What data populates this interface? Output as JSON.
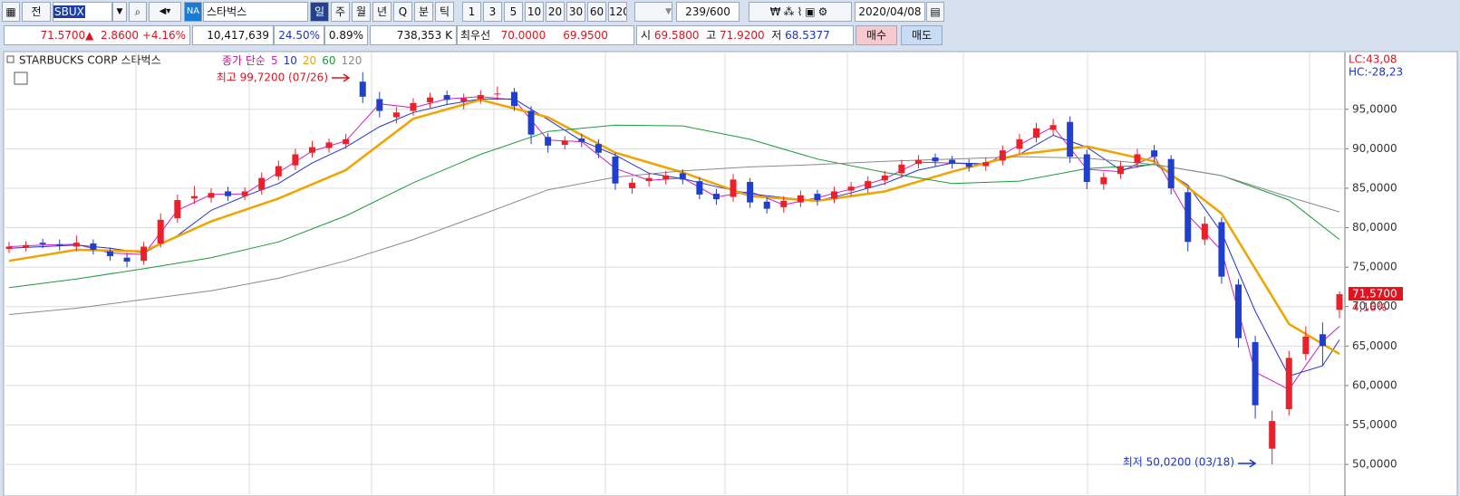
{
  "toolbar": {
    "tab": "전",
    "code": "SBUX",
    "market": "NA",
    "name": "스타벅스",
    "periods": [
      "일",
      "주",
      "월",
      "년",
      "Q",
      "분",
      "틱"
    ],
    "intervals": [
      "1",
      "3",
      "5",
      "10",
      "20",
      "30",
      "60",
      "120"
    ],
    "count": "239",
    "max": "/600",
    "date": "2020/04/08"
  },
  "quote": {
    "price": "71.5700▲",
    "change": "2.8600",
    "rate": "+4.16%",
    "volume": "10,417,639",
    "ratio1": "24.50%",
    "ratio2": "0.89%",
    "amount": "738,353 K",
    "best_label": "최우선",
    "ask": "70.0000",
    "bid": "69.9500",
    "open_label": "시",
    "open": "69.5800",
    "high_label": "고",
    "high": "71.9200",
    "low_label": "저",
    "low": "68.5377",
    "buy": "매수",
    "sell": "매도"
  },
  "chart_data": {
    "type": "candlestick",
    "title": "STARBUCKS CORP 스타벅스",
    "ma_label": "종가 단순",
    "lc": "LC:43,08",
    "hc": "HC:-28,23",
    "high_annotation": "최고 99,7200 (07/26)",
    "low_annotation": "최저 50,0200 (03/18)",
    "last_label": "71,5700",
    "last_change": "4,16%",
    "up_color": "#e8212b",
    "down_color": "#1f3fcc",
    "ylim": [
      46,
      102.2
    ],
    "yticks": [
      {
        "value": 50,
        "label": "50,0000"
      },
      {
        "value": 55,
        "label": "55,0000"
      },
      {
        "value": 60,
        "label": "60,0000"
      },
      {
        "value": 65,
        "label": "65,0000"
      },
      {
        "value": 70,
        "label": "70,0000"
      },
      {
        "value": 75,
        "label": "75,0000"
      },
      {
        "value": 80,
        "label": "80,0000"
      },
      {
        "value": 85,
        "label": "85,0000"
      },
      {
        "value": 90,
        "label": "90,0000"
      },
      {
        "value": 95,
        "label": "95,0000"
      }
    ],
    "grid": true,
    "open": [
      77.3,
      77.5,
      78.1,
      77.9,
      77.6,
      78.0,
      77.0,
      76.2,
      75.8,
      78.0,
      81.2,
      83.7,
      83.8,
      84.6,
      84.0,
      84.8,
      86.5,
      87.9,
      89.5,
      90.1,
      90.6,
      98.5,
      96.3,
      94.0,
      94.8,
      95.9,
      96.8,
      96.0,
      96.3,
      96.9,
      97.2,
      94.8,
      91.5,
      90.5,
      91.3,
      90.6,
      89.0,
      85.0,
      85.9,
      86.1,
      86.9,
      85.9,
      84.3,
      83.9,
      85.8,
      83.3,
      82.6,
      83.2,
      84.3,
      83.7,
      84.7,
      85.0,
      86.0,
      86.9,
      88.1,
      88.9,
      88.6,
      88.2,
      87.8,
      88.5,
      90.0,
      91.4,
      92.4,
      93.4,
      89.3,
      85.5,
      86.8,
      88.2,
      89.8,
      88.7,
      84.5,
      78.5,
      80.7,
      72.8,
      65.5,
      52.0,
      57.0,
      64.0,
      66.5,
      69.58
    ],
    "high": [
      78.2,
      78.3,
      78.6,
      78.5,
      79.0,
      78.5,
      77.5,
      76.8,
      78.2,
      81.8,
      84.2,
      85.3,
      85.0,
      85.2,
      85.1,
      87.0,
      88.5,
      90.0,
      91.0,
      91.3,
      91.9,
      99.72,
      97.2,
      95.3,
      96.4,
      97.1,
      97.4,
      97.0,
      97.4,
      97.9,
      97.7,
      95.4,
      92.0,
      91.6,
      91.9,
      91.2,
      89.5,
      86.3,
      86.9,
      87.2,
      87.4,
      86.4,
      84.9,
      86.8,
      86.3,
      83.9,
      84.0,
      84.7,
      84.8,
      85.2,
      85.8,
      86.5,
      87.2,
      88.6,
      89.2,
      89.4,
      89.1,
      88.7,
      88.9,
      90.4,
      91.9,
      93.3,
      93.8,
      94.1,
      89.9,
      87.0,
      88.4,
      90.0,
      90.5,
      89.2,
      85.1,
      81.4,
      81.3,
      73.5,
      66.3,
      56.8,
      64.4,
      67.5,
      68.0,
      71.92
    ],
    "low": [
      76.8,
      77.0,
      77.4,
      77.1,
      77.0,
      76.6,
      75.8,
      75.0,
      75.3,
      77.5,
      80.6,
      83.0,
      83.2,
      83.4,
      83.5,
      84.2,
      86.0,
      87.3,
      88.9,
      89.5,
      90.0,
      95.8,
      94.0,
      93.2,
      94.2,
      95.2,
      95.6,
      95.0,
      95.7,
      96.2,
      94.8,
      90.6,
      89.5,
      89.9,
      90.2,
      88.8,
      84.8,
      84.3,
      85.2,
      85.5,
      85.5,
      83.6,
      82.9,
      83.3,
      82.5,
      81.8,
      81.9,
      82.6,
      82.8,
      83.1,
      84.0,
      84.4,
      85.4,
      86.3,
      87.5,
      87.8,
      87.5,
      87.1,
      87.2,
      87.9,
      89.4,
      90.8,
      91.7,
      88.2,
      84.9,
      84.8,
      86.2,
      87.6,
      88.3,
      84.2,
      77.0,
      77.8,
      72.9,
      64.8,
      55.8,
      50.02,
      56.2,
      63.2,
      62.5,
      68.5377
    ],
    "close": [
      77.6,
      77.8,
      77.9,
      77.7,
      78.1,
      77.2,
      76.4,
      75.7,
      77.6,
      81.0,
      83.5,
      84.0,
      84.4,
      84.0,
      84.6,
      86.3,
      87.8,
      89.3,
      90.2,
      90.8,
      91.2,
      96.6,
      94.8,
      94.6,
      95.8,
      96.5,
      96.2,
      96.4,
      96.8,
      97.0,
      95.4,
      91.8,
      90.4,
      91.0,
      90.9,
      89.5,
      85.6,
      85.7,
      86.3,
      86.6,
      86.1,
      84.2,
      83.6,
      86.1,
      83.2,
      82.4,
      83.4,
      84.1,
      83.5,
      84.6,
      85.2,
      85.9,
      86.6,
      88.0,
      88.6,
      88.4,
      88.1,
      87.7,
      88.3,
      89.8,
      91.2,
      92.6,
      93.0,
      89.0,
      85.8,
      86.4,
      87.8,
      89.3,
      89.0,
      85.0,
      78.2,
      80.5,
      73.8,
      66.0,
      57.5,
      55.5,
      63.5,
      66.2,
      65.0,
      71.57
    ],
    "ma": [
      {
        "name": "5",
        "color": "#d21fc6",
        "width": 1,
        "x": [
          0,
          2,
          4,
          6,
          8,
          10,
          12,
          14,
          16,
          18,
          20,
          22,
          24,
          26,
          28,
          30,
          32,
          34,
          36,
          38,
          40,
          42,
          44,
          46,
          48,
          50,
          52,
          54,
          56,
          58,
          60,
          62,
          64,
          66,
          68,
          70,
          72,
          74,
          76,
          78,
          79
        ],
        "values": [
          77.6,
          77.8,
          77.9,
          76.8,
          76.6,
          82.2,
          84.2,
          84.3,
          87.0,
          89.7,
          91.0,
          95.7,
          95.2,
          96.3,
          96.6,
          96.2,
          91.1,
          90.9,
          87.5,
          86.0,
          86.3,
          83.9,
          84.6,
          82.9,
          83.8,
          84.9,
          86.2,
          88.3,
          88.2,
          88.0,
          90.5,
          92.8,
          87.4,
          87.1,
          89.1,
          81.6,
          77.1,
          61.7,
          59.5,
          65.6,
          67.5
        ]
      },
      {
        "name": "10",
        "color": "#2233d0",
        "width": 1,
        "x": [
          0,
          2,
          4,
          6,
          8,
          10,
          12,
          14,
          16,
          18,
          20,
          22,
          24,
          26,
          28,
          30,
          32,
          34,
          36,
          38,
          40,
          42,
          44,
          46,
          48,
          50,
          52,
          54,
          56,
          58,
          60,
          62,
          64,
          66,
          68,
          70,
          72,
          74,
          76,
          78,
          79
        ],
        "values": [
          77.4,
          77.6,
          77.8,
          77.4,
          76.8,
          79.0,
          82.2,
          84.0,
          85.6,
          88.2,
          90.2,
          92.8,
          94.6,
          95.6,
          96.3,
          96.3,
          93.7,
          91.0,
          89.2,
          86.9,
          86.2,
          85.2,
          84.3,
          83.8,
          83.4,
          84.4,
          85.6,
          87.3,
          88.2,
          88.1,
          89.3,
          91.7,
          90.2,
          87.3,
          88.1,
          85.4,
          79.4,
          69.4,
          61.2,
          62.5,
          65.8
        ]
      },
      {
        "name": "20",
        "color": "#f0a400",
        "width": 2.5,
        "x": [
          0,
          4,
          8,
          12,
          16,
          20,
          24,
          28,
          32,
          36,
          40,
          44,
          48,
          52,
          56,
          60,
          64,
          68,
          72,
          76,
          79
        ],
        "values": [
          75.8,
          77.2,
          77.0,
          80.8,
          83.7,
          87.3,
          93.8,
          96.2,
          94.0,
          89.5,
          87.0,
          84.0,
          83.4,
          84.6,
          87.1,
          89.3,
          90.3,
          88.4,
          81.8,
          67.8,
          64.0
        ]
      },
      {
        "name": "60",
        "color": "#1a9a3a",
        "width": 1,
        "x": [
          0,
          4,
          8,
          12,
          16,
          20,
          24,
          28,
          32,
          36,
          40,
          44,
          48,
          52,
          56,
          60,
          64,
          68,
          72,
          76,
          79
        ],
        "values": [
          72.4,
          73.5,
          74.8,
          76.2,
          78.2,
          81.5,
          85.7,
          89.3,
          92.2,
          93.0,
          92.9,
          91.2,
          88.7,
          87.0,
          85.6,
          85.9,
          87.5,
          88.0,
          86.6,
          83.5,
          78.5
        ]
      },
      {
        "name": "120",
        "color": "#8a8a8a",
        "width": 1,
        "x": [
          0,
          4,
          8,
          12,
          16,
          20,
          24,
          28,
          32,
          36,
          40,
          44,
          48,
          52,
          56,
          60,
          64,
          68,
          72,
          76,
          79
        ],
        "values": [
          69.0,
          69.8,
          70.9,
          72.0,
          73.6,
          75.8,
          78.5,
          81.6,
          84.8,
          86.4,
          87.2,
          87.7,
          88.0,
          88.4,
          88.7,
          89.0,
          88.8,
          88.0,
          86.6,
          83.9,
          82.0
        ]
      }
    ]
  }
}
